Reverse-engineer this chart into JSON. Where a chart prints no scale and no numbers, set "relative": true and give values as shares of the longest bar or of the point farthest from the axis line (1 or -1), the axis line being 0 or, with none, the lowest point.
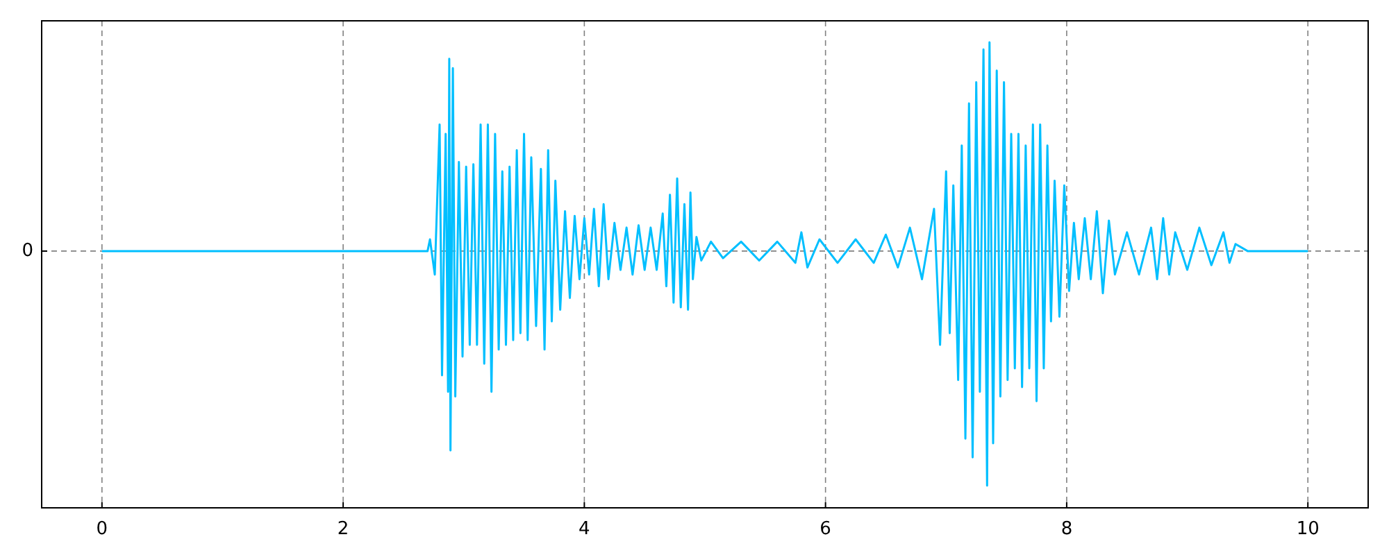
{
  "chart_data": {
    "type": "line",
    "relative": true,
    "x": [
      0,
      2.7,
      2.72,
      2.76,
      2.8,
      2.82,
      2.85,
      2.87,
      2.88,
      2.89,
      2.91,
      2.93,
      2.96,
      2.99,
      3.02,
      3.05,
      3.08,
      3.11,
      3.14,
      3.17,
      3.2,
      3.23,
      3.26,
      3.29,
      3.32,
      3.35,
      3.38,
      3.41,
      3.44,
      3.47,
      3.5,
      3.53,
      3.56,
      3.6,
      3.64,
      3.67,
      3.7,
      3.73,
      3.76,
      3.8,
      3.84,
      3.88,
      3.92,
      3.96,
      4.0,
      4.04,
      4.08,
      4.12,
      4.16,
      4.2,
      4.25,
      4.3,
      4.35,
      4.4,
      4.45,
      4.5,
      4.55,
      4.6,
      4.65,
      4.68,
      4.71,
      4.74,
      4.77,
      4.8,
      4.83,
      4.86,
      4.88,
      4.9,
      4.93,
      4.97,
      5.05,
      5.15,
      5.3,
      5.45,
      5.6,
      5.75,
      5.8,
      5.85,
      5.95,
      6.1,
      6.25,
      6.4,
      6.5,
      6.6,
      6.7,
      6.8,
      6.9,
      6.95,
      7.0,
      7.03,
      7.06,
      7.1,
      7.13,
      7.16,
      7.19,
      7.22,
      7.25,
      7.28,
      7.31,
      7.34,
      7.36,
      7.39,
      7.42,
      7.45,
      7.48,
      7.51,
      7.54,
      7.57,
      7.6,
      7.63,
      7.66,
      7.69,
      7.72,
      7.75,
      7.78,
      7.81,
      7.84,
      7.87,
      7.9,
      7.94,
      7.98,
      8.02,
      8.06,
      8.1,
      8.15,
      8.2,
      8.25,
      8.3,
      8.35,
      8.4,
      8.5,
      8.6,
      8.7,
      8.75,
      8.8,
      8.85,
      8.9,
      9.0,
      9.1,
      9.2,
      9.3,
      9.35,
      9.4,
      9.5,
      10
    ],
    "series": [
      {
        "color": "#00bfff",
        "values": [
          0,
          0,
          0.05,
          -0.1,
          0.54,
          -0.53,
          0.5,
          -0.6,
          0.82,
          -0.85,
          0.78,
          -0.62,
          0.38,
          -0.45,
          0.36,
          -0.4,
          0.37,
          -0.4,
          0.54,
          -0.48,
          0.54,
          -0.6,
          0.5,
          -0.42,
          0.34,
          -0.4,
          0.36,
          -0.38,
          0.43,
          -0.35,
          0.5,
          -0.38,
          0.4,
          -0.32,
          0.35,
          -0.42,
          0.43,
          -0.3,
          0.3,
          -0.25,
          0.17,
          -0.2,
          0.15,
          -0.12,
          0.14,
          -0.1,
          0.18,
          -0.15,
          0.2,
          -0.12,
          0.12,
          -0.08,
          0.1,
          -0.1,
          0.11,
          -0.08,
          0.1,
          -0.08,
          0.16,
          -0.15,
          0.24,
          -0.22,
          0.31,
          -0.24,
          0.2,
          -0.25,
          0.25,
          -0.12,
          0.06,
          -0.04,
          0.04,
          -0.03,
          0.04,
          -0.04,
          0.04,
          -0.05,
          0.08,
          -0.07,
          0.05,
          -0.05,
          0.05,
          -0.05,
          0.07,
          -0.07,
          0.1,
          -0.12,
          0.18,
          -0.4,
          0.34,
          -0.35,
          0.28,
          -0.55,
          0.45,
          -0.8,
          0.63,
          -0.88,
          0.72,
          -0.6,
          0.86,
          -1.0,
          0.89,
          -0.82,
          0.77,
          -0.62,
          0.72,
          -0.55,
          0.5,
          -0.5,
          0.5,
          -0.58,
          0.45,
          -0.5,
          0.54,
          -0.64,
          0.54,
          -0.5,
          0.45,
          -0.3,
          0.3,
          -0.28,
          0.28,
          -0.17,
          0.12,
          -0.12,
          0.14,
          -0.12,
          0.17,
          -0.18,
          0.13,
          -0.1,
          0.08,
          -0.1,
          0.1,
          -0.12,
          0.14,
          -0.1,
          0.08,
          -0.08,
          0.1,
          -0.06,
          0.08,
          -0.05,
          0.03,
          0,
          0
        ]
      }
    ],
    "xlim": [
      -0.5,
      10.5
    ],
    "xticks": [
      0,
      2,
      4,
      6,
      8,
      10
    ],
    "grid": "x",
    "ref_lines": [
      {
        "axis": "y",
        "value": 0,
        "label": "0",
        "color": "#808080",
        "line_style": "dashed"
      }
    ]
  }
}
